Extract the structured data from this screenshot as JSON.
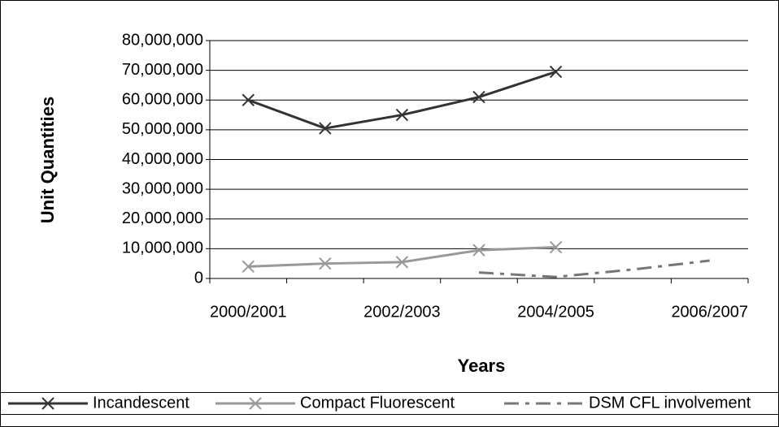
{
  "chart_data": {
    "type": "line",
    "x_label": "Years",
    "y_label": "Unit Quantities",
    "categories": [
      "2000/2001",
      null,
      "2002/2003",
      null,
      "2004/2005",
      null,
      "2006/2007"
    ],
    "series": [
      {
        "name": "Incandescent",
        "color": "#333333",
        "marker": "x",
        "dash": "solid",
        "values": [
          60000000,
          50500000,
          55000000,
          61000000,
          69500000,
          null,
          null
        ]
      },
      {
        "name": "Compact Fluorescent",
        "color": "#999999",
        "marker": "x",
        "dash": "solid",
        "values": [
          4000000,
          5000000,
          5500000,
          9500000,
          10500000,
          null,
          null
        ]
      },
      {
        "name": "DSM CFL involvement",
        "color": "#777777",
        "marker": "none",
        "dash": "dash-dot",
        "values": [
          null,
          null,
          null,
          2000000,
          500000,
          3000000,
          6000000
        ]
      }
    ],
    "ylim": [
      0,
      80000000
    ],
    "yticks": [
      0,
      {
        "value": 10000000,
        "label": "10,000,000"
      },
      {
        "value": 20000000,
        "label": "20,000,000"
      },
      {
        "value": 30000000,
        "label": "30,000,000"
      },
      {
        "value": 40000000,
        "label": "40,000,000"
      },
      {
        "value": 50000000,
        "label": "50,000,000"
      },
      {
        "value": 60000000,
        "label": "60,000,000"
      },
      {
        "value": 70000000,
        "label": "70,000,000"
      },
      {
        "value": 80000000,
        "label": "80,000,000"
      }
    ],
    "grid": true,
    "legend": "bottom"
  }
}
